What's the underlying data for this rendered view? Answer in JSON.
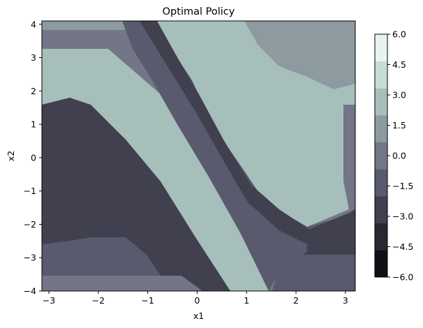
{
  "chart_data": {
    "type": "heatmap",
    "title": "Optimal Policy",
    "xlabel": "x1",
    "ylabel": "x2",
    "xlim": [
      -3.1416,
      3.2
    ],
    "ylim": [
      -4.0,
      4.1
    ],
    "x_ticks": [
      -3,
      -2,
      -1,
      0,
      1,
      2,
      3
    ],
    "y_ticks": [
      -4,
      -3,
      -2,
      -1,
      0,
      1,
      2,
      3,
      4
    ],
    "x_tick_labels": [
      "−3",
      "−2",
      "−1",
      "0",
      "1",
      "2",
      "3"
    ],
    "y_tick_labels": [
      "−4",
      "−3",
      "−2",
      "−1",
      "0",
      "1",
      "2",
      "3",
      "4"
    ],
    "colorbar": {
      "min": -6.0,
      "max": 6.0,
      "ticks": [
        -6.0,
        -4.5,
        -3.0,
        -1.5,
        0.0,
        1.5,
        3.0,
        4.5,
        6.0
      ],
      "tick_labels": [
        "−6.0",
        "−4.5",
        "−3.0",
        "−1.5",
        "0.0",
        "1.5",
        "3.0",
        "4.5",
        "6.0"
      ],
      "level_colors": [
        "#0f1013",
        "#282832",
        "#40404f",
        "#595a6e",
        "#737687",
        "#8d9aa0",
        "#a7bfbb",
        "#c5dcd7",
        "#e7f3f0"
      ]
    }
  }
}
